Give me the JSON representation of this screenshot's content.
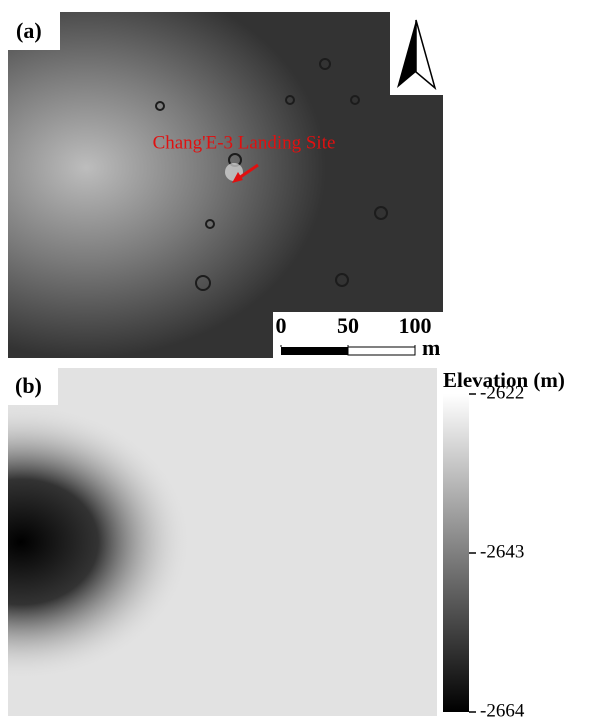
{
  "panel_a": {
    "label": "(a)",
    "annotation": "Chang'E-3 Landing Site",
    "scale_bar": {
      "ticks": [
        0,
        50,
        100
      ],
      "unit": "m"
    }
  },
  "panel_b": {
    "label": "(b)",
    "colorbar": {
      "title": "Elevation (m)",
      "range": [
        -2664,
        -2622
      ],
      "ticks": [
        -2622,
        -2643,
        -2664
      ]
    }
  }
}
